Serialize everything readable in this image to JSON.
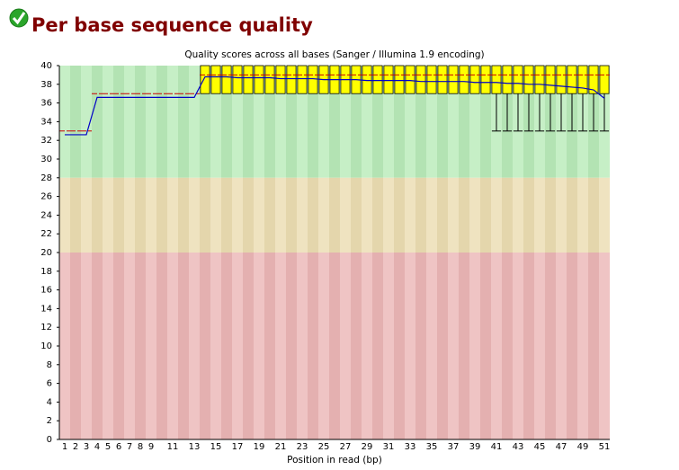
{
  "header": {
    "title": "Per base sequence quality"
  },
  "chart_data": {
    "type": "boxplot",
    "title": "Quality scores across all bases (Sanger / Illumina 1.9 encoding)",
    "x_label": "Position in read (bp)",
    "categories": [
      "1",
      "2",
      "3",
      "4",
      "5",
      "6",
      "7",
      "8",
      "9",
      null,
      "11",
      null,
      "13",
      null,
      "15",
      null,
      "17",
      null,
      "19",
      null,
      "21",
      null,
      "23",
      null,
      "25",
      null,
      "27",
      null,
      "29",
      null,
      "31",
      null,
      "33",
      null,
      "35",
      null,
      "37",
      null,
      "39",
      null,
      "41",
      null,
      "43",
      null,
      "45",
      null,
      "47",
      null,
      "49",
      null,
      "51"
    ],
    "mean": [
      32.6,
      32.6,
      32.6,
      36.6,
      36.6,
      36.6,
      36.6,
      36.6,
      36.6,
      36.6,
      36.6,
      36.6,
      36.6,
      38.8,
      38.8,
      38.8,
      38.7,
      38.7,
      38.7,
      38.7,
      38.6,
      38.6,
      38.6,
      38.6,
      38.5,
      38.5,
      38.5,
      38.5,
      38.4,
      38.4,
      38.4,
      38.4,
      38.4,
      38.3,
      38.3,
      38.3,
      38.3,
      38.3,
      38.2,
      38.2,
      38.2,
      38.1,
      38.1,
      38.0,
      38.0,
      37.9,
      37.8,
      37.7,
      37.6,
      37.4,
      36.5
    ],
    "median": [
      33,
      33,
      33,
      37,
      37,
      37,
      37,
      37,
      37,
      37,
      37,
      37,
      37,
      39,
      39,
      39,
      39,
      39,
      39,
      39,
      39,
      39,
      39,
      39,
      39,
      39,
      39,
      39,
      39,
      39,
      39,
      39,
      39,
      39,
      39,
      39,
      39,
      39,
      39,
      39,
      39,
      39,
      39,
      39,
      39,
      39,
      39,
      39,
      39,
      39,
      39
    ],
    "lower_quartile": [
      33,
      33,
      33,
      37,
      37,
      37,
      37,
      37,
      37,
      37,
      37,
      37,
      37,
      37,
      37,
      37,
      37,
      37,
      37,
      37,
      37,
      37,
      37,
      37,
      37,
      37,
      37,
      37,
      37,
      37,
      37,
      37,
      37,
      37,
      37,
      37,
      37,
      37,
      37,
      37,
      37,
      37,
      37,
      37,
      37,
      37,
      37,
      37,
      37,
      37,
      37
    ],
    "upper_quartile": [
      33,
      33,
      33,
      37,
      37,
      37,
      37,
      37,
      37,
      37,
      37,
      37,
      37,
      40,
      40,
      40,
      40,
      40,
      40,
      40,
      40,
      40,
      40,
      40,
      40,
      40,
      40,
      40,
      40,
      40,
      40,
      40,
      40,
      40,
      40,
      40,
      40,
      40,
      40,
      40,
      40,
      40,
      40,
      40,
      40,
      40,
      40,
      40,
      40,
      40,
      40
    ],
    "percentile_10": [
      33,
      33,
      33,
      37,
      37,
      37,
      37,
      37,
      37,
      37,
      37,
      37,
      37,
      37,
      37,
      37,
      37,
      37,
      37,
      37,
      37,
      37,
      37,
      37,
      37,
      37,
      37,
      37,
      37,
      37,
      37,
      37,
      37,
      37,
      37,
      37,
      37,
      37,
      37,
      37,
      33,
      33,
      33,
      33,
      33,
      33,
      33,
      33,
      33,
      33,
      33
    ],
    "percentile_90": [
      33,
      33,
      33,
      37,
      37,
      37,
      37,
      37,
      37,
      37,
      37,
      37,
      37,
      40,
      40,
      40,
      40,
      40,
      40,
      40,
      40,
      40,
      40,
      40,
      40,
      40,
      40,
      40,
      40,
      40,
      40,
      40,
      40,
      40,
      40,
      40,
      40,
      40,
      40,
      40,
      40,
      40,
      40,
      40,
      40,
      40,
      40,
      40,
      40,
      40,
      40
    ],
    "box_color": "#ffff00",
    "mean_color": "#0000c8",
    "median_color": "#c80000",
    "bands": [
      {
        "from": 28,
        "to": 40,
        "colors": [
          "#c6efc6",
          "#b3e3b3"
        ]
      },
      {
        "from": 20,
        "to": 28,
        "colors": [
          "#efe3c0",
          "#e4d6ac"
        ]
      },
      {
        "from": 0,
        "to": 20,
        "colors": [
          "#efc4c4",
          "#e4b0b0"
        ]
      }
    ],
    "ylim": [
      0,
      40
    ],
    "yticks": [
      0,
      2,
      4,
      6,
      8,
      10,
      12,
      14,
      16,
      18,
      20,
      22,
      24,
      26,
      28,
      30,
      32,
      34,
      36,
      38,
      40
    ]
  }
}
